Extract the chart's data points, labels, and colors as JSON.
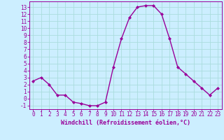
{
  "x": [
    0,
    1,
    2,
    3,
    4,
    5,
    6,
    7,
    8,
    9,
    10,
    11,
    12,
    13,
    14,
    15,
    16,
    17,
    18,
    19,
    20,
    21,
    22,
    23
  ],
  "y": [
    2.5,
    3.0,
    2.0,
    0.5,
    0.5,
    -0.5,
    -0.7,
    -1.0,
    -1.0,
    -0.5,
    4.5,
    8.5,
    11.5,
    13.0,
    13.2,
    13.2,
    12.0,
    8.5,
    4.5,
    3.5,
    2.5,
    1.5,
    0.5,
    1.5
  ],
  "line_color": "#990099",
  "marker": "D",
  "markersize": 2.0,
  "linewidth": 1.0,
  "bg_color": "#cceeff",
  "grid_color": "#aadddd",
  "xlabel": "Windchill (Refroidissement éolien,°C)",
  "xlabel_color": "#990099",
  "ytick_values": [
    -1,
    0,
    1,
    2,
    3,
    4,
    5,
    6,
    7,
    8,
    9,
    10,
    11,
    12,
    13
  ],
  "ylabel_ticks": [
    "-1",
    "0",
    "1",
    "2",
    "3",
    "4",
    "5",
    "6",
    "7",
    "8",
    "9",
    "10",
    "11",
    "12",
    "13"
  ],
  "ylim": [
    -1.5,
    13.8
  ],
  "xlim": [
    -0.5,
    23.5
  ],
  "tick_color": "#990099",
  "spine_color": "#990099",
  "tick_fontsize": 5.5,
  "xlabel_fontsize": 6.0
}
